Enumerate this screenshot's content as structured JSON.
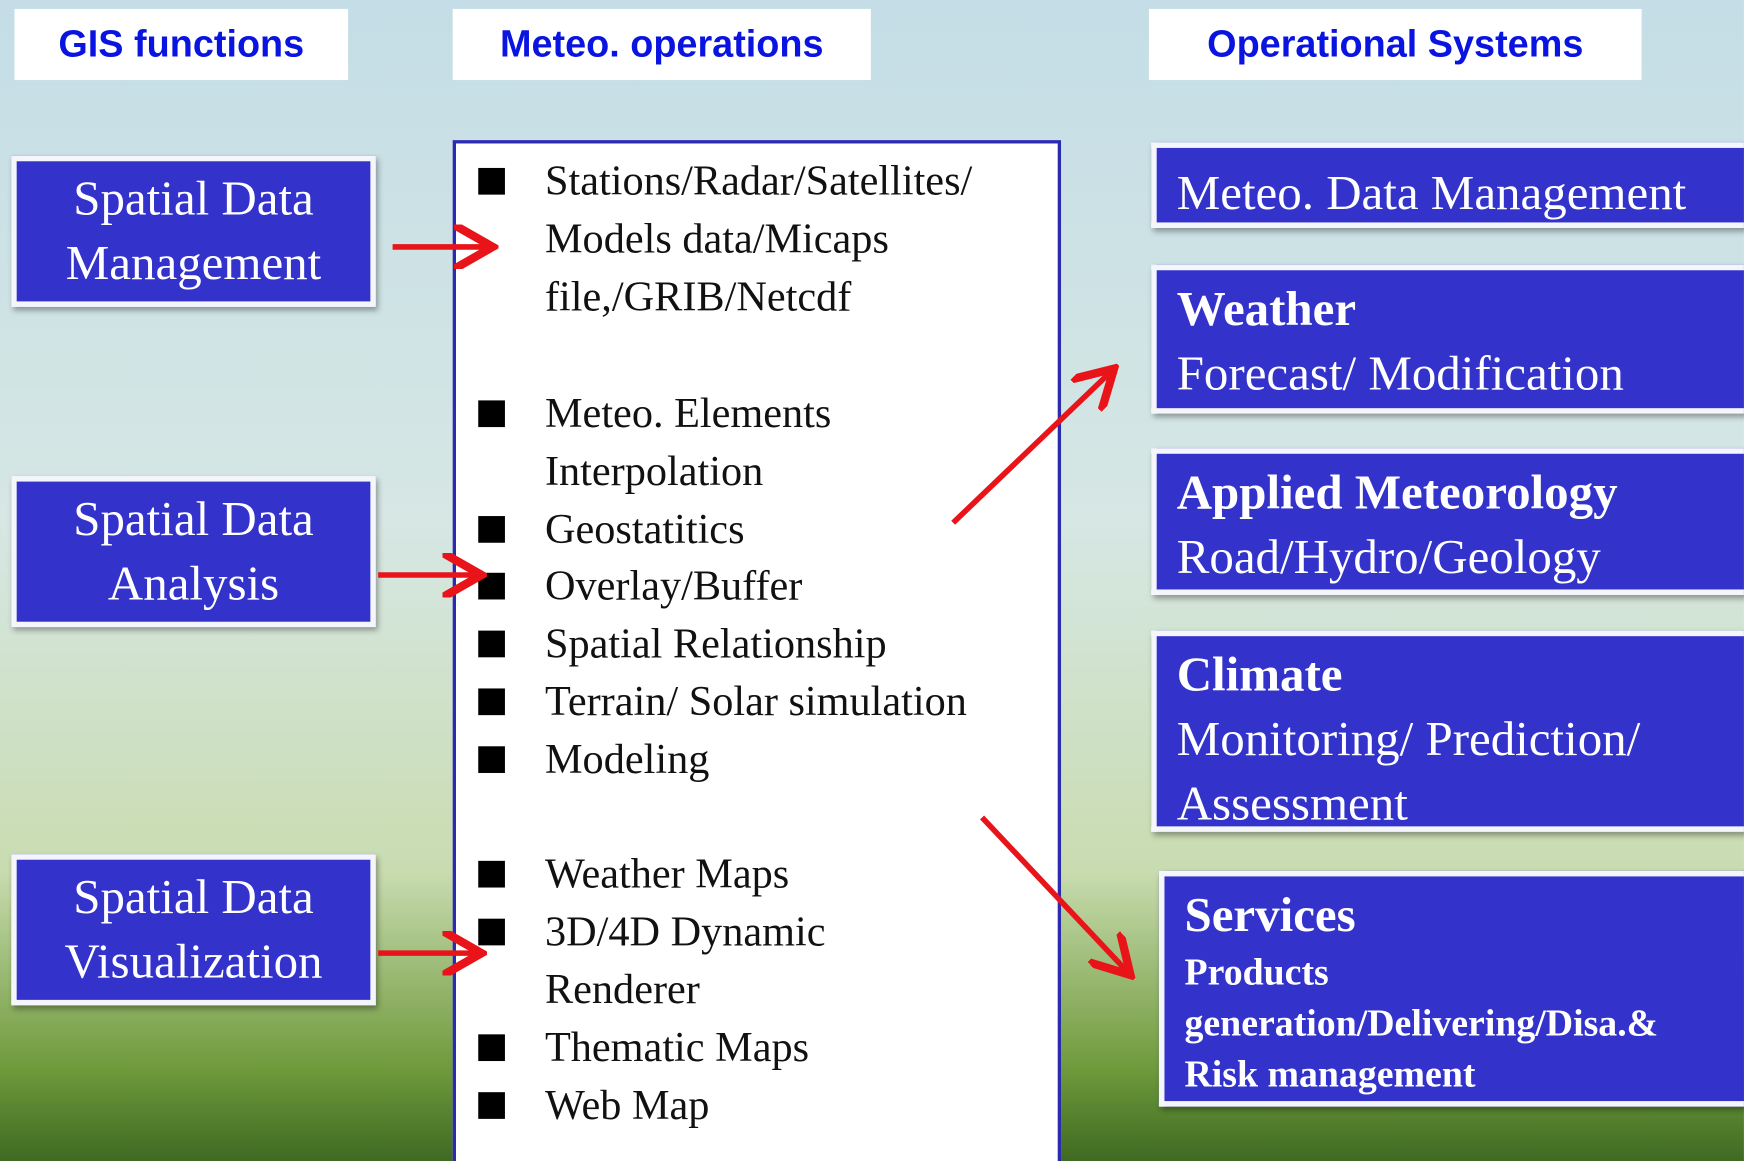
{
  "headers": [
    "GIS functions",
    "Meteo. operations",
    "Operational Systems"
  ],
  "gis_functions": [
    {
      "lines": [
        "Spatial Data",
        "Management"
      ]
    },
    {
      "lines": [
        "Spatial Data",
        "Analysis"
      ]
    },
    {
      "lines": [
        "Spatial Data",
        "Visualization"
      ]
    }
  ],
  "operations": [
    {
      "lines": [
        "Stations/Radar/Satellites/",
        "Models data/Micaps",
        "file,/GRIB/Netcdf"
      ]
    },
    {
      "lines": [
        "Meteo. Elements",
        "Interpolation"
      ]
    },
    {
      "lines": [
        "Geostatitics"
      ]
    },
    {
      "lines": [
        "Overlay/Buffer"
      ]
    },
    {
      "lines": [
        "Spatial Relationship"
      ]
    },
    {
      "lines": [
        "Terrain/ Solar simulation"
      ]
    },
    {
      "lines": [
        "Modeling"
      ]
    },
    {
      "lines": [
        "Weather Maps"
      ]
    },
    {
      "lines": [
        "3D/4D Dynamic",
        "Renderer"
      ]
    },
    {
      "lines": [
        "Thematic Maps"
      ]
    },
    {
      "lines": [
        "Web Map"
      ]
    }
  ],
  "systems": [
    {
      "title": "Meteo. Data Management"
    },
    {
      "title": "Weather",
      "lines": [
        "Forecast/ Modification"
      ]
    },
    {
      "title": "Applied Meteorology",
      "lines": [
        "Road/Hydro/Geology"
      ]
    },
    {
      "title": "Climate",
      "lines": [
        "Monitoring/ Prediction/",
        "Assessment"
      ]
    },
    {
      "title": "Services",
      "lines": [
        "Products",
        "generation/Delivering/Disa.&",
        "Risk management"
      ]
    }
  ]
}
